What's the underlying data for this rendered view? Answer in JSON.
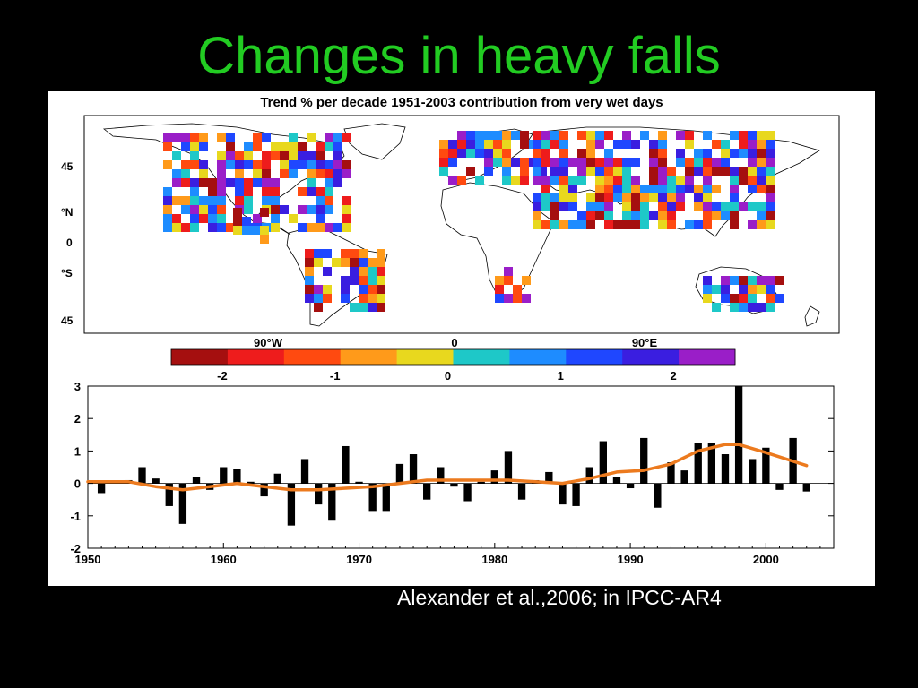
{
  "slide": {
    "title": "Changes in heavy falls",
    "citation": "Alexander et al.,2006; in IPCC-AR4"
  },
  "chart_data": [
    {
      "type": "heatmap",
      "title": "Trend % per decade 1951-2003 contribution from very wet days",
      "xticks": [
        "90°W",
        "0",
        "90°E"
      ],
      "yticks": [
        "45",
        "°N",
        "0",
        "°S",
        "45"
      ],
      "colorbar": {
        "colors": [
          "#a50f0f",
          "#ee1c1c",
          "#ff4a10",
          "#ff9a1a",
          "#e8d81e",
          "#1ec8c8",
          "#1e8cff",
          "#1f47ff",
          "#3a1ee0",
          "#9a1ec8"
        ],
        "tick_labels": [
          "-2",
          "-1",
          "0",
          "1",
          "2"
        ],
        "tick_values": [
          -2,
          -1,
          0,
          1,
          2
        ],
        "range": [
          -2.5,
          2.5
        ]
      }
    },
    {
      "type": "bar",
      "x": [
        1951,
        1952,
        1953,
        1954,
        1955,
        1956,
        1957,
        1958,
        1959,
        1960,
        1961,
        1962,
        1963,
        1964,
        1965,
        1966,
        1967,
        1968,
        1969,
        1970,
        1971,
        1972,
        1973,
        1974,
        1975,
        1976,
        1977,
        1978,
        1979,
        1980,
        1981,
        1982,
        1983,
        1984,
        1985,
        1986,
        1987,
        1988,
        1989,
        1990,
        1991,
        1992,
        1993,
        1994,
        1995,
        1996,
        1997,
        1998,
        1999,
        2000,
        2001,
        2002,
        2003
      ],
      "values": [
        -0.3,
        0.05,
        0.1,
        0.5,
        0.15,
        -0.7,
        -1.25,
        0.2,
        -0.2,
        0.5,
        0.45,
        0.05,
        -0.4,
        0.3,
        -1.3,
        0.75,
        -0.65,
        -1.15,
        1.15,
        0.05,
        -0.85,
        -0.85,
        0.6,
        0.9,
        -0.5,
        0.5,
        -0.1,
        -0.55,
        0.05,
        0.4,
        1.0,
        -0.5,
        0.1,
        0.35,
        -0.65,
        -0.7,
        0.5,
        1.3,
        0.2,
        -0.15,
        1.4,
        -0.75,
        0.65,
        0.4,
        1.25,
        1.25,
        0.9,
        3.0,
        0.75,
        1.1,
        -0.2,
        1.4,
        -0.25
      ],
      "smooth": {
        "x": [
          1950,
          1953,
          1955,
          1957,
          1959,
          1961,
          1963,
          1965,
          1967,
          1969,
          1971,
          1973,
          1975,
          1977,
          1979,
          1981,
          1983,
          1985,
          1987,
          1989,
          1991,
          1993,
          1995,
          1997,
          1998,
          2000,
          2003
        ],
        "y": [
          0.05,
          0.05,
          -0.1,
          -0.2,
          -0.1,
          0.0,
          -0.1,
          -0.2,
          -0.2,
          -0.15,
          -0.1,
          0.0,
          0.1,
          0.1,
          0.1,
          0.1,
          0.05,
          0.0,
          0.15,
          0.35,
          0.4,
          0.6,
          1.0,
          1.2,
          1.2,
          0.95,
          0.55
        ]
      },
      "xticks": [
        1950,
        1960,
        1970,
        1980,
        1990,
        2000
      ],
      "yticks": [
        -2,
        -1,
        0,
        1,
        2,
        3
      ],
      "xlim": [
        1950,
        2005
      ],
      "ylim": [
        -2,
        3
      ],
      "colors": {
        "bars": "#000000",
        "line": "#ec7a1e"
      }
    }
  ]
}
